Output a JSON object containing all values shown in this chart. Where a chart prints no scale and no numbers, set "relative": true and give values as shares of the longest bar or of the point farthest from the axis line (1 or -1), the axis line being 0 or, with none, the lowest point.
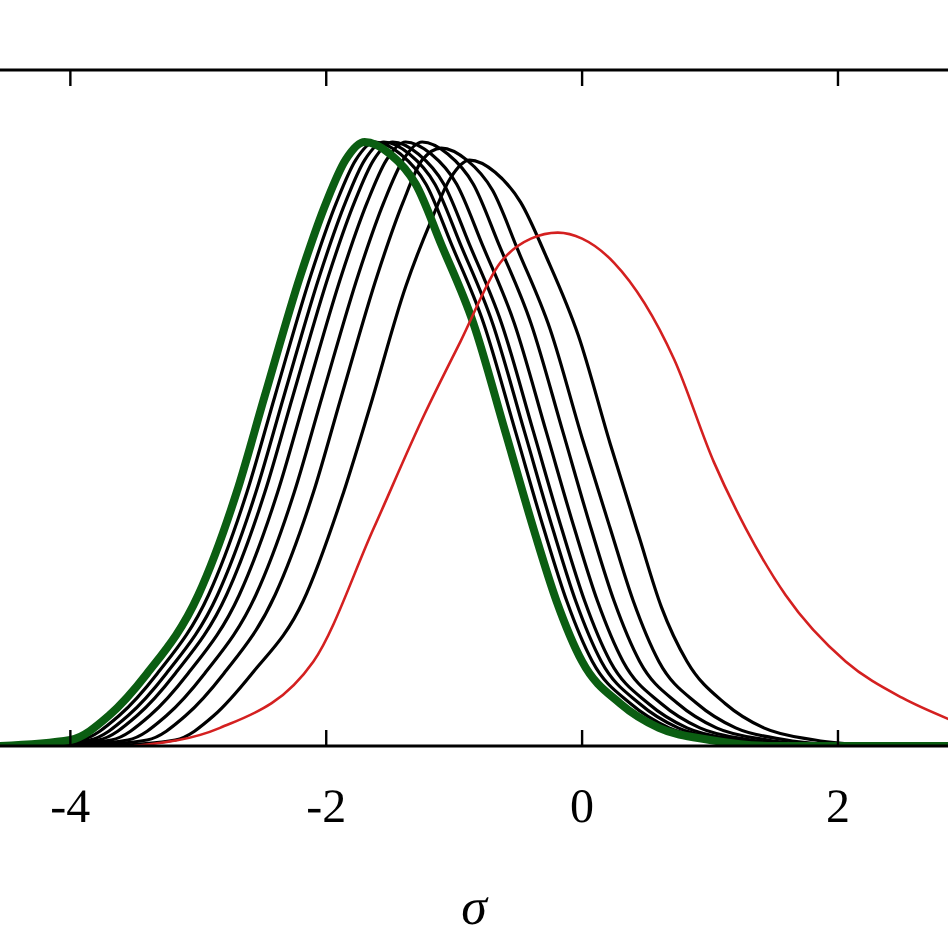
{
  "chart_data": {
    "type": "line",
    "xlabel": "σ",
    "relative": true,
    "xlim": [
      -4.55,
      2.86
    ],
    "xticks": [
      {
        "value": -4,
        "label": "-4"
      },
      {
        "value": -2,
        "label": "-2"
      },
      0,
      2
    ],
    "grid": false,
    "marker": "none",
    "line_style": "solid",
    "series": [
      {
        "color": "#000000",
        "x": [
          -4.47,
          -3.92,
          -3.62,
          -3.32,
          -2.92,
          -2.62,
          -2.4,
          -2.12,
          -1.92,
          -1.77,
          -1.62,
          -1.42,
          -1.22,
          -1.02,
          -0.77,
          -0.52,
          -0.3,
          -0.12,
          0.08,
          0.38,
          0.68,
          1.08,
          1.58
        ],
        "values": [
          0,
          0.01,
          0.05,
          0.12,
          0.25,
          0.42,
          0.58,
          0.78,
          0.9,
          0.97,
          1,
          0.98,
          0.93,
          0.83,
          0.7,
          0.52,
          0.36,
          0.24,
          0.14,
          0.07,
          0.03,
          0.01,
          0
        ]
      },
      {
        "color": "#000000",
        "x": [
          -4.4,
          -3.85,
          -3.55,
          -3.25,
          -2.85,
          -2.55,
          -2.33,
          -2.05,
          -1.85,
          -1.7,
          -1.55,
          -1.35,
          -1.15,
          -0.95,
          -0.7,
          -0.45,
          -0.23,
          -0.05,
          0.15,
          0.45,
          0.75,
          1.15,
          1.65
        ],
        "values": [
          0,
          0.01,
          0.05,
          0.12,
          0.25,
          0.42,
          0.58,
          0.78,
          0.9,
          0.97,
          1,
          0.98,
          0.93,
          0.83,
          0.7,
          0.52,
          0.36,
          0.24,
          0.14,
          0.07,
          0.03,
          0.01,
          0
        ]
      },
      {
        "color": "#000000",
        "x": [
          -4.33,
          -3.78,
          -3.48,
          -3.18,
          -2.78,
          -2.48,
          -2.26,
          -1.98,
          -1.78,
          -1.63,
          -1.48,
          -1.28,
          -1.08,
          -0.88,
          -0.63,
          -0.38,
          -0.16,
          0.02,
          0.22,
          0.52,
          0.82,
          1.22,
          1.72
        ],
        "values": [
          0,
          0.01,
          0.05,
          0.12,
          0.25,
          0.42,
          0.58,
          0.78,
          0.9,
          0.97,
          1,
          0.98,
          0.93,
          0.83,
          0.7,
          0.52,
          0.36,
          0.24,
          0.14,
          0.07,
          0.03,
          0.01,
          0
        ]
      },
      {
        "color": "#000000",
        "x": [
          -4.23,
          -3.68,
          -3.38,
          -3.08,
          -2.68,
          -2.38,
          -2.16,
          -1.88,
          -1.68,
          -1.53,
          -1.38,
          -1.18,
          -0.98,
          -0.78,
          -0.53,
          -0.28,
          -0.06,
          0.12,
          0.32,
          0.62,
          0.92,
          1.32,
          1.82
        ],
        "values": [
          0,
          0.01,
          0.05,
          0.12,
          0.25,
          0.42,
          0.58,
          0.78,
          0.9,
          0.97,
          1,
          0.98,
          0.93,
          0.83,
          0.7,
          0.52,
          0.36,
          0.24,
          0.14,
          0.07,
          0.03,
          0.01,
          0
        ]
      },
      {
        "color": "#000000",
        "x": [
          -4.1,
          -3.55,
          -3.25,
          -2.95,
          -2.55,
          -2.25,
          -2.03,
          -1.75,
          -1.55,
          -1.4,
          -1.25,
          -1.05,
          -0.85,
          -0.65,
          -0.4,
          -0.15,
          0.07,
          0.25,
          0.45,
          0.75,
          1.05,
          1.45,
          1.95
        ],
        "values": [
          0,
          0.01,
          0.05,
          0.12,
          0.25,
          0.42,
          0.58,
          0.78,
          0.9,
          0.97,
          1,
          0.98,
          0.93,
          0.83,
          0.7,
          0.52,
          0.36,
          0.24,
          0.14,
          0.07,
          0.03,
          0.01,
          0
        ]
      },
      {
        "color": "#000000",
        "x": [
          -3.95,
          -3.4,
          -3.1,
          -2.8,
          -2.4,
          -2.1,
          -1.88,
          -1.6,
          -1.4,
          -1.25,
          -1.1,
          -0.9,
          -0.7,
          -0.5,
          -0.25,
          0,
          0.22,
          0.4,
          0.6,
          0.9,
          1.2,
          1.6,
          2.1
        ],
        "values": [
          0,
          0.01,
          0.05,
          0.12,
          0.25,
          0.42,
          0.58,
          0.78,
          0.9,
          0.97,
          0.99,
          0.97,
          0.92,
          0.82,
          0.69,
          0.51,
          0.36,
          0.24,
          0.14,
          0.07,
          0.03,
          0.01,
          0
        ]
      },
      {
        "color": "#000000",
        "x": [
          -3.73,
          -3.18,
          -2.88,
          -2.58,
          -2.18,
          -1.88,
          -1.66,
          -1.38,
          -1.18,
          -1.03,
          -0.88,
          -0.68,
          -0.48,
          -0.28,
          -0.03,
          0.22,
          0.44,
          0.62,
          0.82,
          1.12,
          1.42,
          1.82,
          2.32
        ],
        "values": [
          0,
          0.01,
          0.05,
          0.12,
          0.24,
          0.41,
          0.56,
          0.76,
          0.87,
          0.94,
          0.97,
          0.95,
          0.9,
          0.81,
          0.68,
          0.5,
          0.35,
          0.23,
          0.14,
          0.07,
          0.03,
          0.01,
          0
        ]
      },
      {
        "color": "#0b5e12",
        "x": [
          -4.55,
          -4.0,
          -3.7,
          -3.4,
          -3.0,
          -2.7,
          -2.48,
          -2.2,
          -2.0,
          -1.85,
          -1.7,
          -1.5,
          -1.3,
          -1.1,
          -0.85,
          -0.6,
          -0.38,
          -0.2,
          0,
          0.3,
          0.6,
          1.0,
          1.5,
          2.86
        ],
        "values": [
          0,
          0.01,
          0.05,
          0.12,
          0.25,
          0.42,
          0.58,
          0.78,
          0.9,
          0.97,
          1,
          0.98,
          0.93,
          0.83,
          0.7,
          0.52,
          0.36,
          0.24,
          0.14,
          0.07,
          0.03,
          0.01,
          0,
          0
        ]
      },
      {
        "color": "#d42020",
        "x": [
          -3.5,
          -2.83,
          -2.1,
          -1.63,
          -1.23,
          -0.95,
          -0.64,
          -0.4,
          -0.19,
          0.0,
          0.25,
          0.72,
          1.03,
          1.28,
          1.59,
          2.06,
          2.5,
          2.86
        ],
        "values": [
          0,
          0.03,
          0.14,
          0.36,
          0.55,
          0.67,
          0.8,
          0.84,
          0.85,
          0.84,
          0.8,
          0.64,
          0.47,
          0.36,
          0.25,
          0.14,
          0.08,
          0.045
        ]
      }
    ]
  }
}
